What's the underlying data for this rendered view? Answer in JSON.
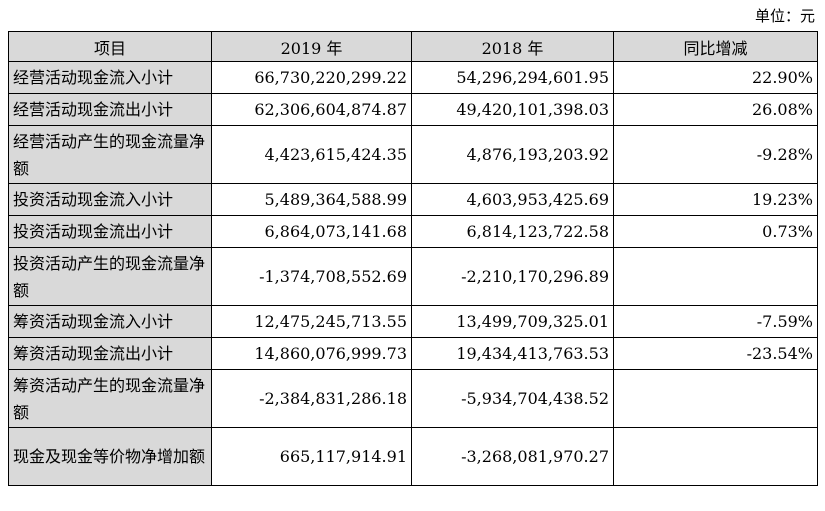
{
  "unit_label": "单位：元",
  "headers": [
    "项目",
    "2019 年",
    "2018 年",
    "同比增减"
  ],
  "rows": [
    {
      "item": "经营活动现金流入小计",
      "y2019": "66,730,220,299.22",
      "y2018": "54,296,294,601.95",
      "change": "22.90%"
    },
    {
      "item": "经营活动现金流出小计",
      "y2019": "62,306,604,874.87",
      "y2018": "49,420,101,398.03",
      "change": "26.08%"
    },
    {
      "item": "经营活动产生的现金流量净额",
      "y2019": "4,423,615,424.35",
      "y2018": "4,876,193,203.92",
      "change": "-9.28%"
    },
    {
      "item": "投资活动现金流入小计",
      "y2019": "5,489,364,588.99",
      "y2018": "4,603,953,425.69",
      "change": "19.23%"
    },
    {
      "item": "投资活动现金流出小计",
      "y2019": "6,864,073,141.68",
      "y2018": "6,814,123,722.58",
      "change": "0.73%"
    },
    {
      "item": "投资活动产生的现金流量净额",
      "y2019": "-1,374,708,552.69",
      "y2018": "-2,210,170,296.89",
      "change": ""
    },
    {
      "item": "筹资活动现金流入小计",
      "y2019": "12,475,245,713.55",
      "y2018": "13,499,709,325.01",
      "change": "-7.59%"
    },
    {
      "item": "筹资活动现金流出小计",
      "y2019": "14,860,076,999.73",
      "y2018": "19,434,413,763.53",
      "change": "-23.54%"
    },
    {
      "item": "筹资活动产生的现金流量净额",
      "y2019": "-2,384,831,286.18",
      "y2018": "-5,934,704,438.52",
      "change": ""
    },
    {
      "item": "现金及现金等价物净增加额",
      "y2019": "665,117,914.91",
      "y2018": "-3,268,081,970.27",
      "change": ""
    }
  ]
}
